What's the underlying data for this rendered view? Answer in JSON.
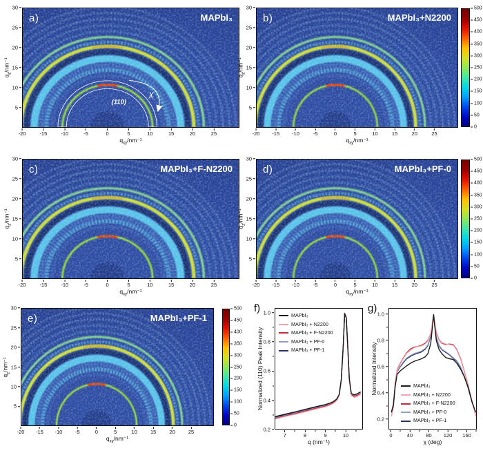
{
  "axes2d": {
    "xlim": [
      -20,
      31
    ],
    "ylim": [
      0,
      30
    ],
    "x_ticks": [
      -20,
      -15,
      -10,
      -5,
      0,
      5,
      10,
      15,
      20,
      25
    ],
    "y_ticks": [
      5,
      10,
      15,
      20,
      25,
      30
    ],
    "x_label": {
      "base": "q",
      "sub": "xy",
      "unit": "/nm⁻¹"
    },
    "y_label": {
      "base": "q",
      "sub": "z",
      "unit": "/nm⁻¹"
    }
  },
  "colorbar": {
    "min": 0,
    "max": 500,
    "ticks": [
      0,
      50,
      100,
      150,
      200,
      250,
      300,
      350,
      400,
      450,
      500
    ],
    "gradient": [
      "#000083",
      "#0008c8",
      "#0048f0",
      "#00a0ff",
      "#00d8e8",
      "#40e8a8",
      "#90e858",
      "#d8e020",
      "#ffc000",
      "#ff6000",
      "#e81000",
      "#9c0000",
      "#780000"
    ]
  },
  "giwaxs": {
    "background_center": "#2f4fa6",
    "background_mid": "#2b49a0",
    "background_edge": "#253f90",
    "beamstop_color": "#243f8f",
    "beamstop_radius": 4,
    "rings": [
      {
        "q": 16.0,
        "color": "#3a62b6",
        "width": 4.2,
        "opacity": 0.35
      },
      {
        "q": 10.65,
        "color": "#8ed23f",
        "width": 0.5,
        "opacity": 1,
        "hot": "#ff3c00",
        "hot_width": 0.5,
        "hot_span": 13,
        "hot_opacity": 0.95
      },
      {
        "q": 13.1,
        "color": "#4a79c8",
        "width": 0.8,
        "opacity": 0.45,
        "dotted": true
      },
      {
        "q": 14.4,
        "color": "#58b6e2",
        "width": 1.0,
        "opacity": 0.8,
        "dotted": true
      },
      {
        "q": 15.6,
        "color": "#4f8fd2",
        "width": 1.6,
        "opacity": 0.45,
        "dotted": true
      },
      {
        "q": 17.3,
        "color": "#5ac8ec",
        "width": 1.7,
        "opacity": 0.95
      },
      {
        "q": 19.0,
        "color": "#16306e",
        "width": 1.2,
        "opacity": 0.9
      },
      {
        "q": 20.4,
        "color": "#c8dc3c",
        "width": 0.85,
        "opacity": 1,
        "hot": "#d43c10",
        "hot_width": 0.5,
        "hot_span": 10,
        "hot_opacity": 0.5,
        "hot_dash": true
      },
      {
        "q": 21.5,
        "color": "#57b8de",
        "width": 0.7,
        "opacity": 0.65,
        "dotted": true
      },
      {
        "q": 22.75,
        "color": "#80d290",
        "width": 0.6,
        "opacity": 0.95
      },
      {
        "q": 24.2,
        "color": "#5e97d0",
        "width": 0.6,
        "opacity": 0.5,
        "dotted": true
      },
      {
        "q": 25.7,
        "color": "#6aa8da",
        "width": 0.5,
        "opacity": 0.45,
        "dotted": true
      },
      {
        "q": 27.3,
        "color": "#86bee4",
        "width": 0.5,
        "opacity": 0.4,
        "dotted": true
      },
      {
        "q": 28.8,
        "color": "#96caea",
        "width": 0.45,
        "opacity": 0.35,
        "dotted": true
      },
      {
        "q": 30.3,
        "color": "#a6d4ee",
        "width": 0.45,
        "opacity": 0.3,
        "dotted": true
      }
    ],
    "annotation": {
      "ring_label": "(110)",
      "chi_label": "χ",
      "annulus_inner_q": 9.7,
      "annulus_outer_q": 11.7
    }
  },
  "chart_data": [
    {
      "type": "heatmap",
      "id": "a",
      "label": "a)",
      "title": "MAPbI₃",
      "xlabel": "qxy/nm⁻¹",
      "ylabel": "qz/nm⁻¹",
      "xlim": [
        -20,
        31
      ],
      "ylim": [
        0,
        30
      ],
      "colorbar_range": [
        0,
        500
      ],
      "has_colorbar": false,
      "ring_q_positions": [
        10.65,
        13.1,
        14.4,
        15.6,
        17.3,
        19.0,
        20.4,
        21.5,
        22.75,
        24.2,
        25.7,
        27.3,
        28.8,
        30.3
      ],
      "annotations": [
        "(110)",
        "χ"
      ]
    },
    {
      "type": "heatmap",
      "id": "b",
      "label": "b)",
      "title": "MAPbI₃+N2200",
      "xlabel": "qxy/nm⁻¹",
      "ylabel": "qz/nm⁻¹",
      "xlim": [
        -20,
        31
      ],
      "ylim": [
        0,
        30
      ],
      "colorbar_range": [
        0,
        500
      ],
      "has_colorbar": true,
      "ring_q_positions": [
        10.65,
        13.1,
        14.4,
        15.6,
        17.3,
        19.0,
        20.4,
        21.5,
        22.75,
        24.2,
        25.7,
        27.3,
        28.8,
        30.3
      ]
    },
    {
      "type": "heatmap",
      "id": "c",
      "label": "c)",
      "title": "MAPbI₃+F-N2200",
      "xlabel": "qxy/nm⁻¹",
      "ylabel": "qz/nm⁻¹",
      "xlim": [
        -20,
        31
      ],
      "ylim": [
        0,
        30
      ],
      "colorbar_range": [
        0,
        500
      ],
      "has_colorbar": false,
      "ring_q_positions": [
        10.65,
        13.1,
        14.4,
        15.6,
        17.3,
        19.0,
        20.4,
        21.5,
        22.75,
        24.2,
        25.7,
        27.3,
        28.8,
        30.3
      ]
    },
    {
      "type": "heatmap",
      "id": "d",
      "label": "d)",
      "title": "MAPbI₃+PF-0",
      "xlabel": "qxy/nm⁻¹",
      "ylabel": "qz/nm⁻¹",
      "xlim": [
        -20,
        31
      ],
      "ylim": [
        0,
        30
      ],
      "colorbar_range": [
        0,
        500
      ],
      "has_colorbar": true,
      "ring_q_positions": [
        10.65,
        13.1,
        14.4,
        15.6,
        17.3,
        19.0,
        20.4,
        21.5,
        22.75,
        24.2,
        25.7,
        27.3,
        28.8,
        30.3
      ]
    },
    {
      "type": "heatmap",
      "id": "e",
      "label": "e)",
      "title": "MAPbI₃+PF-1",
      "xlabel": "qxy/nm⁻¹",
      "ylabel": "qz/nm⁻¹",
      "xlim": [
        -20,
        31
      ],
      "ylim": [
        0,
        30
      ],
      "colorbar_range": [
        0,
        500
      ],
      "has_colorbar": true,
      "ring_q_positions": [
        10.65,
        13.1,
        14.4,
        15.6,
        17.3,
        19.0,
        20.4,
        21.5,
        22.75,
        24.2,
        25.7,
        27.3,
        28.8,
        30.3
      ]
    },
    {
      "type": "line",
      "id": "f",
      "label": "f)",
      "xlabel": "q (nm⁻¹)",
      "ylabel": "Normalized (110) Peak Intensity",
      "xlim": [
        6.5,
        10.85
      ],
      "ylim": [
        0.2,
        1.033
      ],
      "x_ticks": [
        7,
        8,
        9,
        10
      ],
      "x_minor_ticks": [
        7.5,
        8.5,
        9.5,
        10.5
      ],
      "y_ticks": [
        "0.2",
        "0.4",
        "0.6",
        "0.8",
        "1.0"
      ],
      "y_minor_ticks": [
        0.3,
        0.5,
        0.7,
        0.9
      ],
      "legend_position": "top-left",
      "x": [
        6.5,
        7.0,
        7.5,
        8.0,
        8.5,
        9.0,
        9.2,
        9.35,
        9.5,
        9.6,
        9.7,
        9.8,
        9.9,
        9.97,
        10.05,
        10.12,
        10.2,
        10.3,
        10.45,
        10.6,
        10.75
      ],
      "series": [
        {
          "name": "MAPbI₃",
          "color": "#1a1a1a",
          "width": 1.4,
          "values": [
            0.285,
            0.302,
            0.318,
            0.335,
            0.352,
            0.368,
            0.377,
            0.385,
            0.398,
            0.412,
            0.44,
            0.54,
            0.78,
            1.0,
            0.97,
            0.78,
            0.55,
            0.445,
            0.435,
            0.443,
            0.455
          ]
        },
        {
          "name": "MAPbI₃ + N2200",
          "color": "#f2a3ad",
          "width": 1.2,
          "values": [
            0.268,
            0.285,
            0.301,
            0.318,
            0.336,
            0.352,
            0.362,
            0.372,
            0.386,
            0.4,
            0.43,
            0.53,
            0.77,
            1.0,
            0.96,
            0.76,
            0.53,
            0.43,
            0.418,
            0.424,
            0.436
          ]
        },
        {
          "name": "MAPbI₃ + F-N2200",
          "color": "#c5293a",
          "width": 1.3,
          "values": [
            0.272,
            0.289,
            0.306,
            0.323,
            0.341,
            0.357,
            0.367,
            0.377,
            0.391,
            0.405,
            0.435,
            0.535,
            0.775,
            1.0,
            0.965,
            0.77,
            0.54,
            0.437,
            0.425,
            0.432,
            0.444
          ]
        },
        {
          "name": "MAPbI₃ + PF-0",
          "color": "#8e9cc6",
          "width": 1.2,
          "values": [
            0.276,
            0.293,
            0.31,
            0.327,
            0.345,
            0.361,
            0.371,
            0.381,
            0.395,
            0.409,
            0.438,
            0.54,
            0.78,
            1.0,
            0.97,
            0.775,
            0.545,
            0.44,
            0.43,
            0.437,
            0.449
          ]
        },
        {
          "name": "MAPbI₃ + PF-1",
          "color": "#25335f",
          "width": 1.3,
          "values": [
            0.28,
            0.297,
            0.314,
            0.331,
            0.349,
            0.365,
            0.374,
            0.383,
            0.397,
            0.411,
            0.44,
            0.545,
            0.785,
            1.0,
            0.975,
            0.78,
            0.55,
            0.443,
            0.433,
            0.44,
            0.452
          ]
        }
      ]
    },
    {
      "type": "line",
      "id": "g",
      "label": "g)",
      "xlabel": "χ (deg)",
      "ylabel": "Normalized Intensity",
      "xlim": [
        -5,
        181
      ],
      "ylim": [
        0.12,
        1.047
      ],
      "x_ticks": [
        0,
        40,
        80,
        120,
        160
      ],
      "x_minor_ticks": [
        20,
        60,
        100,
        140,
        180
      ],
      "y_ticks": [
        "0.2",
        "0.4",
        "0.6",
        "0.8",
        "1.0"
      ],
      "y_minor_ticks": [
        0.3,
        0.5,
        0.7,
        0.9
      ],
      "legend_position": "bottom-left",
      "x": [
        0,
        4,
        8,
        12,
        18,
        25,
        32,
        40,
        48,
        56,
        64,
        72,
        78,
        84,
        88,
        90,
        92,
        96,
        102,
        108,
        116,
        124,
        132,
        140,
        148,
        156,
        164,
        172,
        176,
        180
      ],
      "series": [
        {
          "name": "MAPbI₃",
          "color": "#1a1a1a",
          "width": 1.4,
          "values": [
            0.25,
            0.3,
            0.45,
            0.54,
            0.565,
            0.585,
            0.605,
            0.625,
            0.64,
            0.65,
            0.66,
            0.675,
            0.7,
            0.78,
            0.92,
            1.0,
            0.93,
            0.8,
            0.73,
            0.7,
            0.67,
            0.66,
            0.655,
            0.625,
            0.58,
            0.52,
            0.44,
            0.33,
            0.29,
            0.25
          ]
        },
        {
          "name": "MAPbI₃ + N2200",
          "color": "#f2a3ad",
          "width": 1.2,
          "values": [
            0.22,
            0.28,
            0.46,
            0.57,
            0.615,
            0.66,
            0.7,
            0.725,
            0.745,
            0.755,
            0.76,
            0.775,
            0.8,
            0.86,
            0.95,
            1.0,
            0.95,
            0.87,
            0.81,
            0.785,
            0.775,
            0.77,
            0.765,
            0.725,
            0.655,
            0.555,
            0.45,
            0.33,
            0.28,
            0.22
          ]
        },
        {
          "name": "MAPbI₃ + F-N2200",
          "color": "#c5293a",
          "width": 1.3,
          "values": [
            0.22,
            0.29,
            0.47,
            0.575,
            0.62,
            0.665,
            0.705,
            0.735,
            0.75,
            0.755,
            0.765,
            0.78,
            0.805,
            0.855,
            0.95,
            1.0,
            0.95,
            0.865,
            0.805,
            0.78,
            0.77,
            0.775,
            0.77,
            0.73,
            0.66,
            0.56,
            0.455,
            0.335,
            0.285,
            0.22
          ]
        },
        {
          "name": "MAPbI₃ + PF-0",
          "color": "#8e9cc6",
          "width": 1.2,
          "values": [
            0.255,
            0.31,
            0.47,
            0.565,
            0.6,
            0.635,
            0.665,
            0.685,
            0.7,
            0.71,
            0.72,
            0.74,
            0.77,
            0.84,
            0.95,
            1.0,
            0.945,
            0.83,
            0.765,
            0.735,
            0.715,
            0.695,
            0.67,
            0.645,
            0.6,
            0.525,
            0.44,
            0.335,
            0.29,
            0.25
          ]
        },
        {
          "name": "MAPbI₃ + PF-1",
          "color": "#25335f",
          "width": 1.3,
          "values": [
            0.255,
            0.31,
            0.465,
            0.56,
            0.595,
            0.628,
            0.658,
            0.678,
            0.693,
            0.703,
            0.713,
            0.733,
            0.763,
            0.835,
            0.945,
            1.0,
            0.94,
            0.825,
            0.76,
            0.73,
            0.71,
            0.69,
            0.665,
            0.64,
            0.595,
            0.52,
            0.435,
            0.33,
            0.285,
            0.25
          ]
        }
      ]
    }
  ]
}
